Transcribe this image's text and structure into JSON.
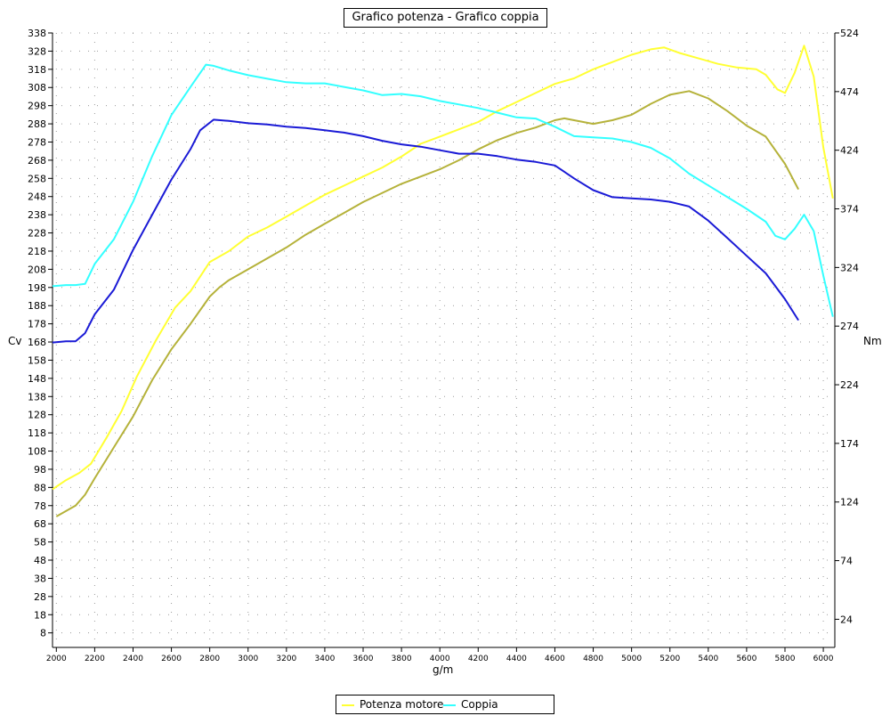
{
  "chart_data": {
    "type": "line",
    "title": "Grafico potenza - Grafico coppia",
    "xlabel": "g/m",
    "ylabel_left": "Cv",
    "ylabel_right": "Nm",
    "xlim": [
      1980,
      6060
    ],
    "ylim_left": [
      0,
      338
    ],
    "ylim_right": [
      0,
      524
    ],
    "x_ticks": [
      2000,
      2200,
      2400,
      2600,
      2800,
      3000,
      3200,
      3400,
      3600,
      3800,
      4000,
      4200,
      4400,
      4600,
      4800,
      5000,
      5200,
      5400,
      5600,
      5800,
      6000
    ],
    "y_ticks_left": [
      8,
      18,
      28,
      38,
      48,
      58,
      68,
      78,
      88,
      98,
      108,
      118,
      128,
      138,
      148,
      158,
      168,
      178,
      188,
      198,
      208,
      218,
      228,
      238,
      248,
      258,
      268,
      278,
      288,
      298,
      308,
      318,
      328,
      338
    ],
    "y_ticks_right": [
      24,
      74,
      124,
      174,
      224,
      274,
      324,
      374,
      424,
      474,
      524
    ],
    "grid": true,
    "legend_position": "bottom-center",
    "legend": [
      {
        "label": "Potenza motore",
        "color": "#ffff33"
      },
      {
        "label": "Coppia",
        "color": "#33ffff"
      }
    ],
    "series": [
      {
        "color": "#ffff33",
        "axis": "left",
        "points": [
          [
            1980,
            87
          ],
          [
            2050,
            92
          ],
          [
            2120,
            96
          ],
          [
            2180,
            101
          ],
          [
            2260,
            115
          ],
          [
            2340,
            130
          ],
          [
            2420,
            149
          ],
          [
            2520,
            169
          ],
          [
            2620,
            187
          ],
          [
            2700,
            196
          ],
          [
            2800,
            212
          ],
          [
            2900,
            218
          ],
          [
            3000,
            226
          ],
          [
            3100,
            231
          ],
          [
            3200,
            237
          ],
          [
            3300,
            243
          ],
          [
            3400,
            249
          ],
          [
            3500,
            254
          ],
          [
            3600,
            259
          ],
          [
            3700,
            264
          ],
          [
            3800,
            270
          ],
          [
            3900,
            277
          ],
          [
            4000,
            281
          ],
          [
            4100,
            285
          ],
          [
            4200,
            289
          ],
          [
            4300,
            295
          ],
          [
            4400,
            300
          ],
          [
            4500,
            305
          ],
          [
            4600,
            310
          ],
          [
            4700,
            313
          ],
          [
            4800,
            318
          ],
          [
            4900,
            322
          ],
          [
            5000,
            326
          ],
          [
            5100,
            329
          ],
          [
            5170,
            330
          ],
          [
            5250,
            327
          ],
          [
            5350,
            324
          ],
          [
            5450,
            321
          ],
          [
            5550,
            319
          ],
          [
            5650,
            318
          ],
          [
            5700,
            315
          ],
          [
            5760,
            307
          ],
          [
            5800,
            305
          ],
          [
            5850,
            316
          ],
          [
            5900,
            331
          ],
          [
            5950,
            314
          ],
          [
            6000,
            275
          ],
          [
            6050,
            247
          ]
        ]
      },
      {
        "color": "#b5b23a",
        "axis": "left",
        "points": [
          [
            2000,
            72
          ],
          [
            2050,
            75
          ],
          [
            2100,
            78
          ],
          [
            2150,
            84
          ],
          [
            2200,
            93
          ],
          [
            2300,
            110
          ],
          [
            2400,
            127
          ],
          [
            2500,
            147
          ],
          [
            2600,
            164
          ],
          [
            2700,
            178
          ],
          [
            2800,
            193
          ],
          [
            2850,
            198
          ],
          [
            2900,
            202
          ],
          [
            3000,
            208
          ],
          [
            3100,
            214
          ],
          [
            3200,
            220
          ],
          [
            3300,
            227
          ],
          [
            3400,
            233
          ],
          [
            3500,
            239
          ],
          [
            3600,
            245
          ],
          [
            3700,
            250
          ],
          [
            3800,
            255
          ],
          [
            3900,
            259
          ],
          [
            4000,
            263
          ],
          [
            4100,
            268
          ],
          [
            4200,
            274
          ],
          [
            4300,
            279
          ],
          [
            4400,
            283
          ],
          [
            4500,
            286
          ],
          [
            4600,
            290
          ],
          [
            4650,
            291
          ],
          [
            4700,
            290
          ],
          [
            4800,
            288
          ],
          [
            4900,
            290
          ],
          [
            5000,
            293
          ],
          [
            5100,
            299
          ],
          [
            5200,
            304
          ],
          [
            5300,
            306
          ],
          [
            5400,
            302
          ],
          [
            5500,
            295
          ],
          [
            5600,
            287
          ],
          [
            5700,
            281
          ],
          [
            5800,
            266
          ],
          [
            5870,
            252
          ]
        ]
      },
      {
        "color": "#33ffff",
        "axis": "right",
        "points": [
          [
            1980,
            308
          ],
          [
            2050,
            309
          ],
          [
            2100,
            309
          ],
          [
            2150,
            310
          ],
          [
            2200,
            327
          ],
          [
            2300,
            348
          ],
          [
            2400,
            380
          ],
          [
            2500,
            419
          ],
          [
            2600,
            454
          ],
          [
            2700,
            478
          ],
          [
            2780,
            497
          ],
          [
            2820,
            496
          ],
          [
            2900,
            492
          ],
          [
            3000,
            488
          ],
          [
            3100,
            485
          ],
          [
            3200,
            482
          ],
          [
            3300,
            481
          ],
          [
            3400,
            481
          ],
          [
            3500,
            478
          ],
          [
            3600,
            475
          ],
          [
            3700,
            471
          ],
          [
            3800,
            472
          ],
          [
            3900,
            470
          ],
          [
            4000,
            466
          ],
          [
            4100,
            463
          ],
          [
            4200,
            460
          ],
          [
            4300,
            456
          ],
          [
            4400,
            452
          ],
          [
            4500,
            451
          ],
          [
            4600,
            444
          ],
          [
            4700,
            436
          ],
          [
            4800,
            435
          ],
          [
            4900,
            434
          ],
          [
            5000,
            431
          ],
          [
            5100,
            426
          ],
          [
            5200,
            417
          ],
          [
            5300,
            404
          ],
          [
            5400,
            394
          ],
          [
            5500,
            384
          ],
          [
            5600,
            374
          ],
          [
            5700,
            363
          ],
          [
            5750,
            351
          ],
          [
            5800,
            348
          ],
          [
            5850,
            357
          ],
          [
            5900,
            369
          ],
          [
            5950,
            355
          ],
          [
            6000,
            317
          ],
          [
            6050,
            282
          ]
        ]
      },
      {
        "color": "#1a1ad6",
        "axis": "right",
        "points": [
          [
            1980,
            260
          ],
          [
            2050,
            261
          ],
          [
            2100,
            261
          ],
          [
            2150,
            268
          ],
          [
            2200,
            284
          ],
          [
            2300,
            305
          ],
          [
            2400,
            339
          ],
          [
            2500,
            369
          ],
          [
            2600,
            399
          ],
          [
            2700,
            425
          ],
          [
            2750,
            441
          ],
          [
            2820,
            450
          ],
          [
            2900,
            449
          ],
          [
            3000,
            447
          ],
          [
            3100,
            446
          ],
          [
            3200,
            444
          ],
          [
            3300,
            443
          ],
          [
            3400,
            441
          ],
          [
            3500,
            439
          ],
          [
            3600,
            436
          ],
          [
            3700,
            432
          ],
          [
            3800,
            429
          ],
          [
            3900,
            427
          ],
          [
            4000,
            424
          ],
          [
            4100,
            421
          ],
          [
            4200,
            421
          ],
          [
            4300,
            419
          ],
          [
            4400,
            416
          ],
          [
            4500,
            414
          ],
          [
            4600,
            411
          ],
          [
            4700,
            400
          ],
          [
            4800,
            390
          ],
          [
            4900,
            384
          ],
          [
            5000,
            383
          ],
          [
            5100,
            382
          ],
          [
            5200,
            380
          ],
          [
            5300,
            376
          ],
          [
            5400,
            364
          ],
          [
            5500,
            349
          ],
          [
            5600,
            334
          ],
          [
            5700,
            319
          ],
          [
            5800,
            297
          ],
          [
            5870,
            279
          ]
        ]
      }
    ]
  }
}
